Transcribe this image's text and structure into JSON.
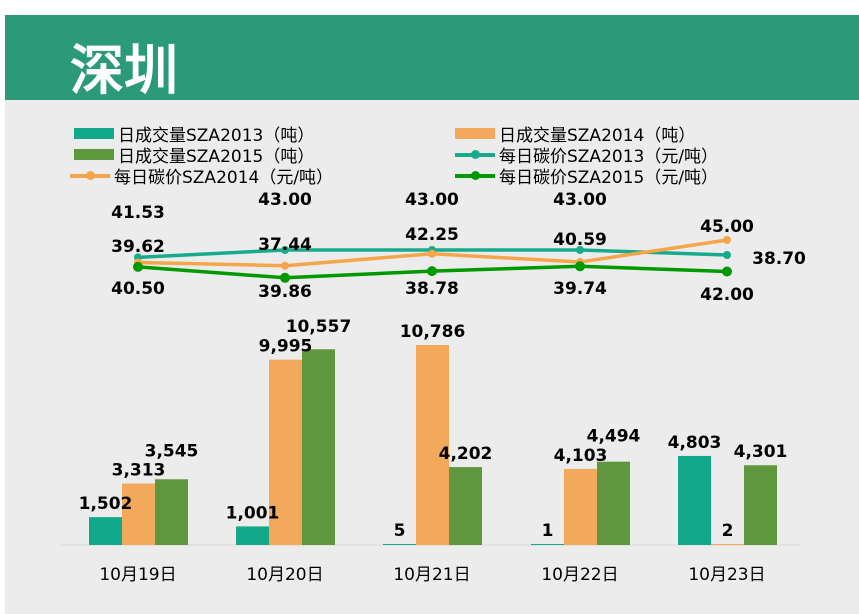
{
  "title": "深圳",
  "chart_data": {
    "type": "bar+line",
    "title": "深圳",
    "categories": [
      "10月19日",
      "10月20日",
      "10月21日",
      "10月22日",
      "10月23日"
    ],
    "bar_series": [
      {
        "name": "日成交量SZA2013（吨）",
        "color": "#12a98a",
        "values": [
          1502,
          1001,
          5,
          1,
          4803
        ],
        "labels": [
          "1,502",
          "1,001",
          "5",
          "1",
          "4,803"
        ]
      },
      {
        "name": "日成交量SZA2014（吨）",
        "color": "#f2a95b",
        "values": [
          3313,
          9995,
          10786,
          4103,
          2
        ],
        "labels": [
          "3,313",
          "9,995",
          "10,786",
          "4,103",
          "2"
        ]
      },
      {
        "name": "日成交量SZA2015（吨）",
        "color": "#5e973e",
        "values": [
          3545,
          10557,
          4202,
          4494,
          4301
        ],
        "labels": [
          "3,545",
          "10,557",
          "4,202",
          "4,494",
          "4,301"
        ]
      }
    ],
    "line_series": [
      {
        "name": "每日碳价SZA2013（元/吨）",
        "color": "#17aa8c",
        "values": [
          41.53,
          43.0,
          43.0,
          43.0,
          42.0
        ],
        "labels": [
          "41.53",
          "43.00",
          "43.00",
          "43.00",
          "42.00"
        ]
      },
      {
        "name": "每日碳价SZA2014（元/吨）",
        "color": "#f5a54a",
        "values": [
          40.5,
          39.86,
          42.25,
          40.59,
          45.0
        ],
        "labels": [
          "40.50",
          "39.86",
          "42.25",
          "40.59",
          "45.00"
        ]
      },
      {
        "name": "每日碳价SZA2015（元/吨）",
        "color": "#009900",
        "values": [
          39.62,
          37.44,
          38.78,
          39.74,
          38.7
        ],
        "labels": [
          "39.62",
          "37.44",
          "38.78",
          "39.74",
          "38.70"
        ]
      }
    ],
    "legend_position": "top",
    "grid": false
  }
}
